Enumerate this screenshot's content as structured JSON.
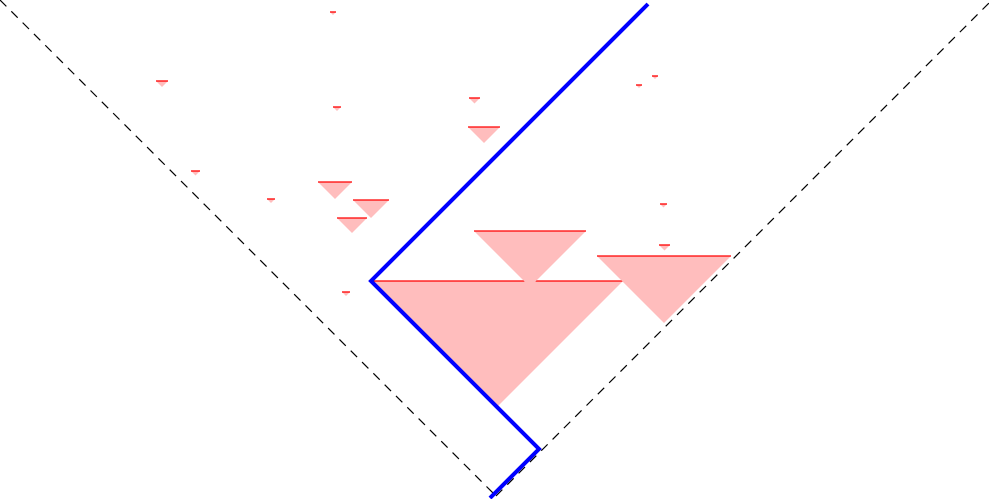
{
  "colors": {
    "background": "#ffffff",
    "boundary": "#000000",
    "path": "#0000ff",
    "region_fill": "#ffbdbd",
    "region_edge": "#ff0000"
  },
  "diagram": {
    "boundary_style": "dashed",
    "elements": [
      "boundary-left",
      "boundary-right",
      "blue-path",
      "shaded-triangles"
    ]
  }
}
